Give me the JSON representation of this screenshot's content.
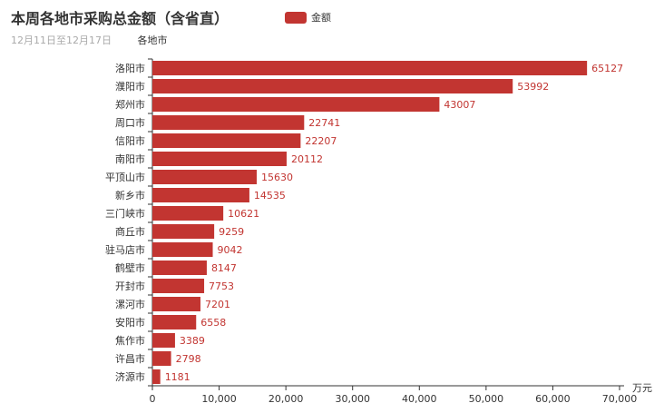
{
  "chart_data": {
    "type": "bar",
    "orientation": "horizontal",
    "title": "本周各地市采购总金额（含省直）",
    "subtitle": "12月11日至12月17日",
    "ylabel": "各地市",
    "xlabel": "万元",
    "xlim": [
      0,
      70000
    ],
    "xticks": [
      "0",
      "10,000",
      "20,000",
      "30,000",
      "40,000",
      "50,000",
      "60,000",
      "70,000"
    ],
    "legend": {
      "label": "金额",
      "placement": "top"
    },
    "color": "#c23531",
    "categories": [
      "洛阳市",
      "濮阳市",
      "郑州市",
      "周口市",
      "信阳市",
      "南阳市",
      "平顶山市",
      "新乡市",
      "三门峡市",
      "商丘市",
      "驻马店市",
      "鹤壁市",
      "开封市",
      "漯河市",
      "安阳市",
      "焦作市",
      "许昌市",
      "济源市"
    ],
    "series": [
      {
        "name": "金额",
        "values": [
          65127,
          53992,
          43007,
          22741,
          22207,
          20112,
          15630,
          14535,
          10621,
          9259,
          9042,
          8147,
          7753,
          7201,
          6558,
          3389,
          2798,
          1181
        ]
      }
    ]
  }
}
